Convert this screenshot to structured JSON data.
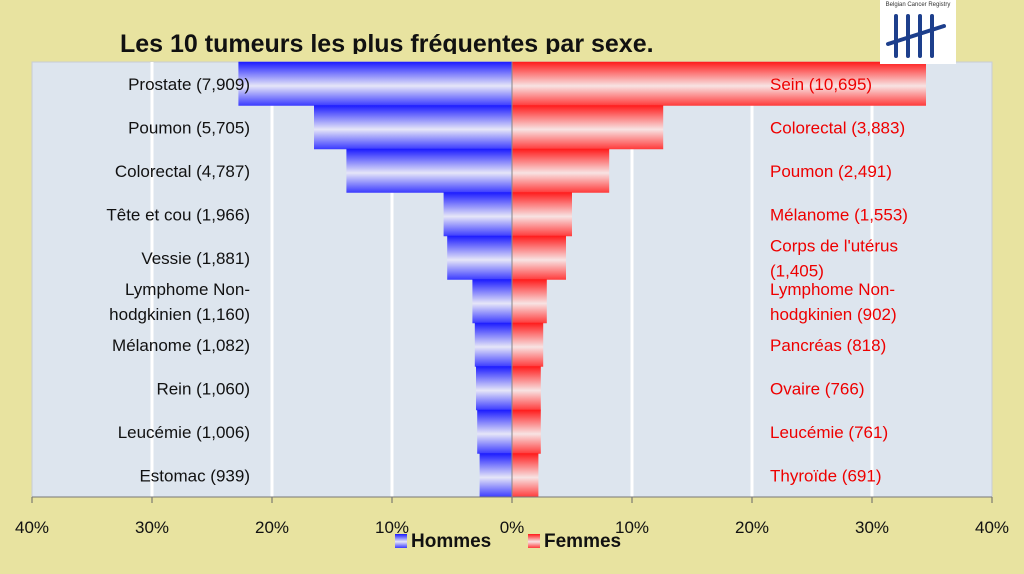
{
  "title": "Les 10 tumeurs les plus fréquentes par sexe.",
  "logo": {
    "text": "Belgian Cancer Registry",
    "icon": "tally-marks-logo"
  },
  "colors": {
    "background": "#e8e3a0",
    "plot_area": "#dde5ee",
    "male": "#1a1aff",
    "female": "#ff1a1a",
    "male_label": "#111111",
    "female_label": "#ee0000"
  },
  "chart_data": {
    "type": "bar",
    "orientation": "horizontal-diverging",
    "title": "Les 10 tumeurs les plus fréquentes par sexe.",
    "xlim": [
      -40,
      40
    ],
    "x_ticks": [
      "40%",
      "30%",
      "20%",
      "10%",
      "0%",
      "10%",
      "20%",
      "30%",
      "40%"
    ],
    "legend": {
      "placement": "bottom",
      "entries": [
        "Hommes",
        "Femmes"
      ]
    },
    "series": [
      {
        "name": "Hommes",
        "labels": [
          "Prostate (7,909)",
          "Poumon (5,705)",
          "Colorectal (4,787)",
          "Tête et cou (1,966)",
          "Vessie (1,881)",
          "Lymphome Non-hodgkinien (1,160)",
          "Mélanome (1,082)",
          "Rein (1,060)",
          "Leucémie (1,006)",
          "Estomac (939)"
        ],
        "values": [
          22.8,
          16.5,
          13.8,
          5.7,
          5.4,
          3.3,
          3.1,
          3.0,
          2.9,
          2.7
        ]
      },
      {
        "name": "Femmes",
        "labels": [
          "Sein (10,695)",
          "Colorectal (3,883)",
          "Poumon (2,491)",
          "Mélanome (1,553)",
          "Corps de l'utérus (1,405)",
          "Lymphome Non-hodgkinien (902)",
          "Pancréas (818)",
          "Ovaire (766)",
          "Leucémie (761)",
          "Thyroïde (691)"
        ],
        "values": [
          34.5,
          12.6,
          8.1,
          5.0,
          4.5,
          2.9,
          2.6,
          2.4,
          2.4,
          2.2
        ]
      }
    ]
  }
}
